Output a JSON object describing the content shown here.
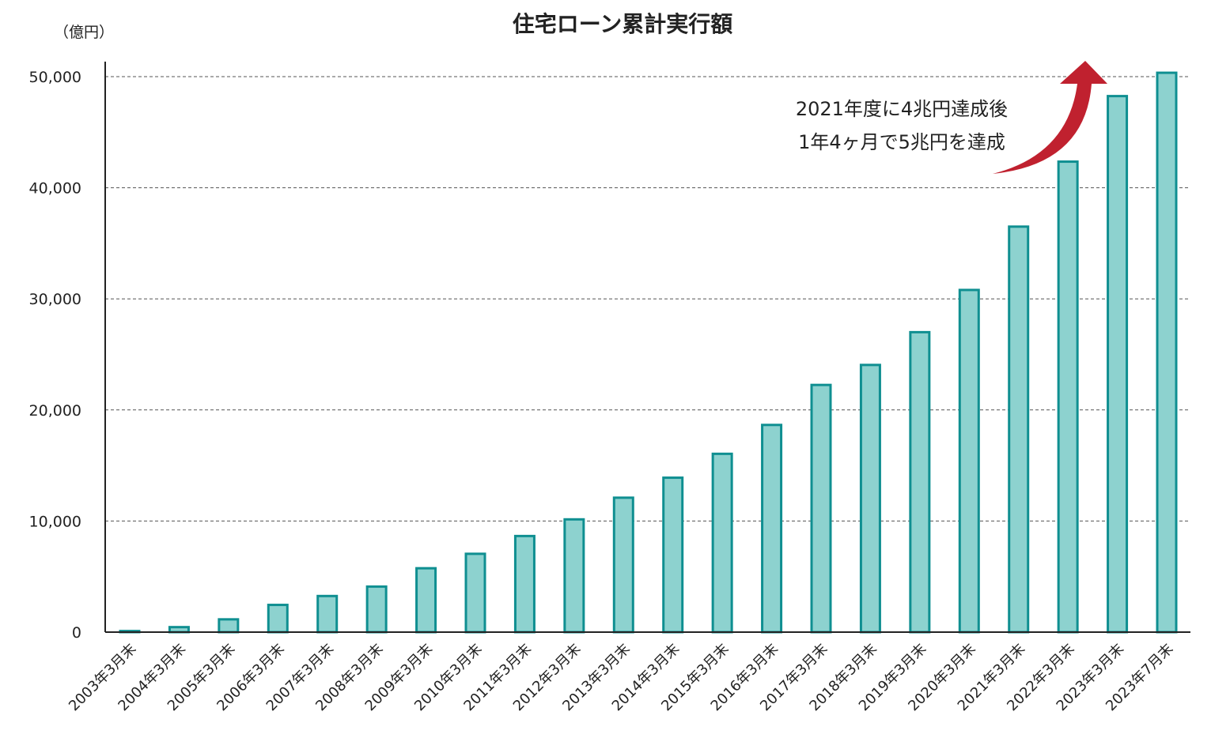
{
  "chart_data": {
    "type": "bar",
    "title": "住宅ローン累計実行額",
    "unit_label": "（億円）",
    "xlabel": "",
    "ylabel": "億円",
    "ylim": [
      0,
      50000
    ],
    "yticks": [
      0,
      10000,
      20000,
      30000,
      40000,
      50000
    ],
    "ytick_labels": [
      "0",
      "10,000",
      "20,000",
      "30,000",
      "40,000",
      "50,000"
    ],
    "grid": true,
    "categories": [
      "2003年3月末",
      "2004年3月末",
      "2005年3月末",
      "2006年3月末",
      "2007年3月末",
      "2008年3月末",
      "2009年3月末",
      "2010年3月末",
      "2011年3月末",
      "2012年3月末",
      "2013年3月末",
      "2014年3月末",
      "2015年3月末",
      "2016年3月末",
      "2017年3月末",
      "2018年3月末",
      "2019年3月末",
      "2020年3月末",
      "2021年3月末",
      "2022年3月末",
      "2023年3月末",
      "2023年7月末"
    ],
    "values": [
      100,
      450,
      1150,
      2450,
      3250,
      4100,
      5750,
      7050,
      8650,
      10150,
      12100,
      13900,
      16050,
      18650,
      22250,
      24050,
      27000,
      30800,
      36500,
      42350,
      48250,
      50350
    ],
    "annotation": {
      "lines": [
        "2021年度に4兆円達成後",
        "1年4ヶ月で5兆円を達成"
      ]
    },
    "colors": {
      "bar_fill": "#8dd2cf",
      "bar_stroke": "#0f8f91",
      "grid": "#555555",
      "axis": "#222222",
      "arrow": "#c0212f"
    }
  }
}
